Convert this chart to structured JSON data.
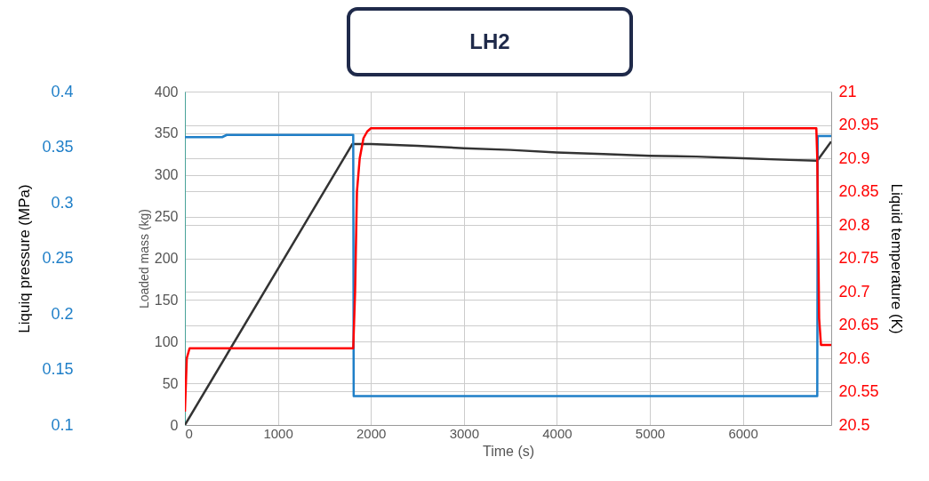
{
  "chart_data": {
    "type": "line",
    "title": "LH2",
    "xlabel": "Time (s)",
    "ylabel": "Loaded mass (kg)",
    "y2label": "Liquid temperature  (K)",
    "y3label": "Liquiq pressure  (MPa)",
    "xlim": [
      0,
      6950
    ],
    "xticks": [
      0,
      1000,
      2000,
      3000,
      4000,
      5000,
      6000
    ],
    "ylim": [
      0,
      400
    ],
    "yticks": [
      0,
      50,
      100,
      150,
      200,
      250,
      300,
      350,
      400
    ],
    "y2lim": [
      20.5,
      21
    ],
    "y2ticks": [
      20.5,
      20.55,
      20.6,
      20.65,
      20.7,
      20.75,
      20.8,
      20.85,
      20.9,
      20.95,
      21
    ],
    "y3lim": [
      0.1,
      0.4
    ],
    "y3ticks": [
      0.1,
      0.15,
      0.2,
      0.25,
      0.3,
      0.35,
      0.4
    ],
    "grid": true,
    "marker": "none",
    "line_style": "solid",
    "series": [
      {
        "color": "#333333",
        "x": [
          0,
          1800,
          1820,
          2000,
          2500,
          3000,
          3500,
          4000,
          4500,
          5000,
          5500,
          6000,
          6500,
          6800,
          6950
        ],
        "values": [
          0,
          337,
          337,
          337,
          335,
          332,
          330,
          327,
          325,
          323,
          322,
          320,
          318,
          317,
          340
        ]
      },
      {
        "color": "#1f7fc8",
        "axis": "y3",
        "x": [
          0,
          400,
          450,
          1810,
          1815,
          6800,
          6805,
          6950
        ],
        "values": [
          0.359,
          0.359,
          0.361,
          0.361,
          0.126,
          0.126,
          0.36,
          0.36
        ]
      },
      {
        "color": "#ff0000",
        "axis": "y2",
        "x": [
          0,
          10,
          20,
          50,
          1800,
          1810,
          1830,
          1850,
          1880,
          1920,
          1960,
          2000,
          6790,
          6800,
          6820,
          6840,
          6870,
          6950
        ],
        "values": [
          20.52,
          20.56,
          20.6,
          20.615,
          20.615,
          20.615,
          20.7,
          20.85,
          20.9,
          20.93,
          20.94,
          20.945,
          20.945,
          20.9,
          20.66,
          20.62,
          20.62,
          20.62
        ]
      }
    ]
  }
}
